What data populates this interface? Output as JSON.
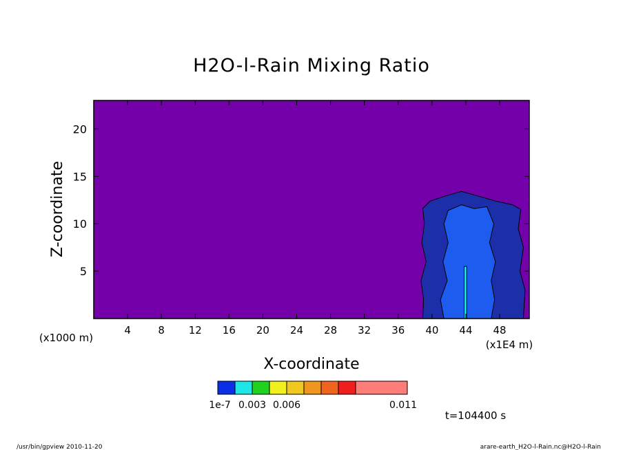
{
  "chart_data": {
    "type": "contour",
    "title": "H2O-l-Rain Mixing Ratio",
    "xlabel": "X-coordinate",
    "ylabel": "Z-coordinate",
    "x_unit": "(x1E4 m)",
    "y_unit": "(x1000 m)",
    "xlim": [
      0,
      51.5
    ],
    "ylim": [
      0,
      23
    ],
    "x_ticks": [
      4,
      8,
      12,
      16,
      20,
      24,
      28,
      32,
      36,
      40,
      44,
      48
    ],
    "y_ticks": [
      5,
      10,
      15,
      20
    ],
    "background_color": "#7300a8",
    "levels": [
      {
        "value": 1e-07,
        "color": "#0a2fe6"
      },
      {
        "value": 0.0015,
        "color": "#1ee6e6"
      },
      {
        "value": 0.003,
        "color": "#1ed21e"
      },
      {
        "value": 0.0045,
        "color": "#f0f01e"
      },
      {
        "value": 0.006,
        "color": "#f0c81e"
      },
      {
        "value": 0.0075,
        "color": "#f0961e"
      },
      {
        "value": 0.009,
        "color": "#f0641e"
      },
      {
        "value": 0.0105,
        "color": "#f01e1e"
      },
      {
        "value": 0.011,
        "color": "#ff7d78"
      }
    ],
    "colorbar_labels": [
      {
        "text": "1e-7",
        "value": 1e-07
      },
      {
        "text": "0.003",
        "value": 0.003
      },
      {
        "text": "0.006",
        "value": 0.006
      },
      {
        "text": "0.011",
        "value": 0.011
      }
    ],
    "regions": [
      {
        "name": "outer-rain-region",
        "level": 0,
        "color": "#1d2fa8",
        "outline": [
          [
            38.9,
            0
          ],
          [
            39.0,
            2
          ],
          [
            38.7,
            4
          ],
          [
            39.3,
            6
          ],
          [
            38.8,
            8
          ],
          [
            39.1,
            10
          ],
          [
            38.9,
            11.6
          ],
          [
            39.8,
            12.4
          ],
          [
            41.5,
            12.9
          ],
          [
            43.5,
            13.4
          ],
          [
            45.5,
            12.9
          ],
          [
            47.5,
            12.4
          ],
          [
            49.5,
            12.0
          ],
          [
            50.5,
            11.5
          ],
          [
            50.2,
            9.5
          ],
          [
            50.8,
            7.5
          ],
          [
            50.4,
            5
          ],
          [
            51.0,
            3
          ],
          [
            50.8,
            0
          ]
        ]
      },
      {
        "name": "inner-rain-region",
        "level": 1,
        "color": "#1e5cf0",
        "outline": [
          [
            41.4,
            0
          ],
          [
            41.0,
            2
          ],
          [
            41.8,
            4
          ],
          [
            41.3,
            6
          ],
          [
            41.9,
            8
          ],
          [
            41.4,
            10
          ],
          [
            41.9,
            11.4
          ],
          [
            43.5,
            12.0
          ],
          [
            45.0,
            11.6
          ],
          [
            46.5,
            11.8
          ],
          [
            47.3,
            10
          ],
          [
            46.8,
            8
          ],
          [
            47.5,
            6
          ],
          [
            47.0,
            4
          ],
          [
            47.4,
            2
          ],
          [
            47.0,
            0
          ]
        ]
      },
      {
        "name": "core-shaft",
        "level": 2,
        "color": "#1ee6e6",
        "outline": [
          [
            43.8,
            0
          ],
          [
            43.8,
            5.5
          ],
          [
            44.1,
            5.5
          ],
          [
            44.1,
            0
          ]
        ]
      }
    ],
    "time_label": "t=104400 s",
    "footer_left": "/usr/bin/gpview   2010-11-20",
    "footer_right": "arare-earth_H2O-l-Rain.nc@H2O-l-Rain"
  }
}
